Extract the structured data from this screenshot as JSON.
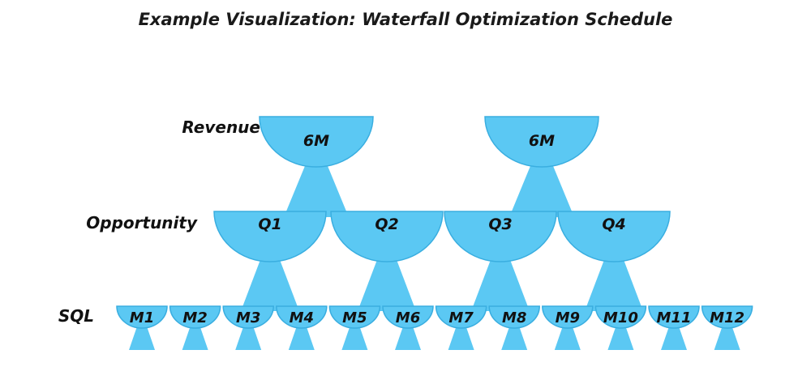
{
  "title": "Example Visualization: Waterfall Optimization Schedule",
  "colors": {
    "fill": "#5bc8f3",
    "stroke": "#3aaee0"
  },
  "rows": {
    "revenue": {
      "label": "Revenue",
      "items": [
        "6M",
        "6M"
      ]
    },
    "opportunity": {
      "label": "Opportunity",
      "items": [
        "Q1",
        "Q2",
        "Q3",
        "Q4"
      ]
    },
    "sql": {
      "label": "SQL",
      "items": [
        "M1",
        "M2",
        "M3",
        "M4",
        "M5",
        "M6",
        "M7",
        "M8",
        "M9",
        "M10",
        "M11",
        "M12"
      ]
    }
  }
}
